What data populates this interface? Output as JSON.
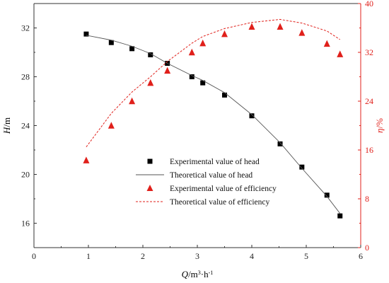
{
  "colors": {
    "head": "#000000",
    "efficiency": "#e0201b",
    "axis": "#333333"
  },
  "chart_data": {
    "type": "scatter",
    "x_axis": {
      "label_parts": [
        {
          "text": "Q",
          "italic": true
        },
        {
          "text": "/m"
        },
        {
          "text": "3",
          "sup": true
        },
        {
          "text": "·h"
        },
        {
          "text": "-1",
          "sup": true
        }
      ],
      "range": [
        0,
        6
      ],
      "ticks": [
        0,
        1,
        2,
        3,
        4,
        5,
        6
      ]
    },
    "y_left": {
      "label_parts": [
        {
          "text": "H",
          "italic": true
        },
        {
          "text": "/m"
        }
      ],
      "range": [
        14,
        34
      ],
      "ticks": [
        16,
        20,
        24,
        28,
        32
      ]
    },
    "y_right": {
      "label_parts": [
        {
          "text": "η",
          "italic": true
        },
        {
          "text": "/%"
        }
      ],
      "range": [
        0,
        40
      ],
      "ticks": [
        0,
        8,
        16,
        24,
        32,
        40
      ]
    },
    "grid": false,
    "legend_position": "center-left",
    "series": [
      {
        "name": "Experimental value of head",
        "axis": "left",
        "mark": "square",
        "x": [
          0.96,
          1.42,
          1.8,
          2.14,
          2.45,
          2.9,
          3.1,
          3.5,
          4.0,
          4.52,
          4.92,
          5.38,
          5.62
        ],
        "y": [
          31.5,
          30.8,
          30.3,
          29.8,
          29.1,
          28.0,
          27.5,
          26.5,
          24.8,
          22.5,
          20.6,
          18.3,
          16.6
        ]
      },
      {
        "name": "Theoretical value of head",
        "axis": "left",
        "mark": "line",
        "x": [
          0.96,
          1.42,
          1.8,
          2.14,
          2.45,
          2.9,
          3.1,
          3.5,
          4.0,
          4.52,
          4.92,
          5.38,
          5.62
        ],
        "y": [
          31.4,
          31.0,
          30.5,
          29.9,
          29.1,
          28.1,
          27.7,
          26.7,
          24.9,
          22.6,
          20.5,
          18.2,
          16.8
        ]
      },
      {
        "name": "Experimental value of efficiency",
        "axis": "right",
        "mark": "triangle",
        "x": [
          0.96,
          1.42,
          1.8,
          2.14,
          2.45,
          2.9,
          3.1,
          3.5,
          4.0,
          4.52,
          4.92,
          5.38,
          5.62
        ],
        "y": [
          14.3,
          20.0,
          24.0,
          27.0,
          29.0,
          32.0,
          33.5,
          35.0,
          36.2,
          36.2,
          35.2,
          33.4,
          31.7
        ]
      },
      {
        "name": "Theoretical value of efficiency",
        "axis": "right",
        "mark": "dashed-line",
        "x": [
          0.96,
          1.42,
          1.8,
          2.14,
          2.45,
          2.9,
          3.1,
          3.5,
          4.0,
          4.52,
          4.92,
          5.38,
          5.62
        ],
        "y": [
          16.5,
          22.0,
          25.5,
          28.0,
          30.5,
          33.5,
          34.6,
          35.9,
          36.9,
          37.4,
          36.8,
          35.5,
          34.1
        ]
      }
    ]
  }
}
